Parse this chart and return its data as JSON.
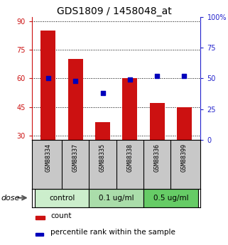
{
  "title": "GDS1809 / 1458048_at",
  "samples": [
    "GSM88334",
    "GSM88337",
    "GSM88335",
    "GSM88338",
    "GSM88336",
    "GSM88399"
  ],
  "counts": [
    85,
    70,
    37,
    60,
    47,
    45
  ],
  "percentiles": [
    50,
    48,
    38,
    49,
    52,
    52
  ],
  "groups": [
    {
      "label": "control",
      "indices": [
        0,
        1
      ],
      "color": "#cceecc"
    },
    {
      "label": "0.1 ug/ml",
      "indices": [
        2,
        3
      ],
      "color": "#aaddaa"
    },
    {
      "label": "0.5 ug/ml",
      "indices": [
        4,
        5
      ],
      "color": "#66cc66"
    }
  ],
  "ylim_left": [
    28,
    92
  ],
  "ylim_right": [
    0,
    100
  ],
  "yticks_left": [
    30,
    45,
    60,
    75,
    90
  ],
  "yticks_right": [
    0,
    25,
    50,
    75,
    100
  ],
  "bar_color": "#cc1111",
  "dot_color": "#0000bb",
  "bar_width": 0.55,
  "title_fontsize": 10,
  "left_axis_color": "#cc1111",
  "right_axis_color": "#2222cc",
  "dose_label": "dose",
  "legend_count": "count",
  "legend_percentile": "percentile rank within the sample",
  "sample_box_color": "#c8c8c8",
  "dot_size": 20
}
